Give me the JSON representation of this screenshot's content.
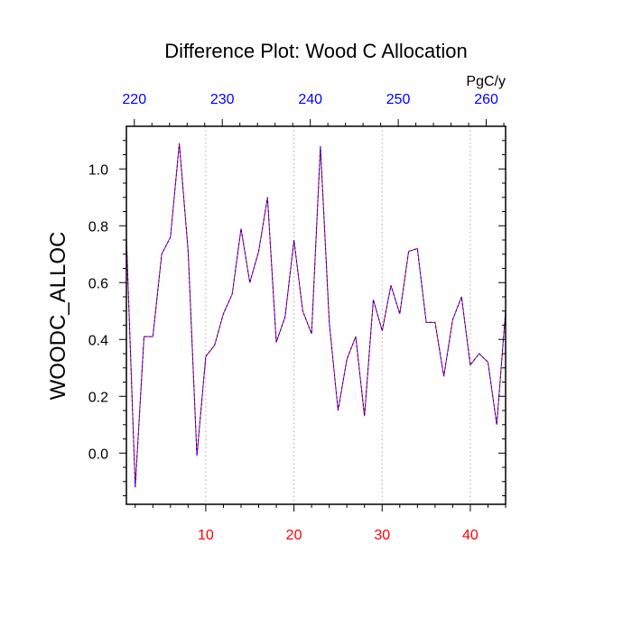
{
  "chart_data": {
    "type": "line",
    "title": "Difference Plot: Wood C Allocation",
    "ylabel": "WOODC_ALLOC",
    "xlabel": "",
    "top_axis_unit": "PgC/y",
    "ylim": [
      -0.18,
      1.15
    ],
    "xlim": [
      1,
      44
    ],
    "y_ticks": [
      0.0,
      0.2,
      0.4,
      0.6,
      0.8,
      1.0
    ],
    "y_tick_labels": [
      "0.0",
      "0.2",
      "0.4",
      "0.6",
      "0.8",
      "1.0"
    ],
    "x_ticks": [
      10,
      20,
      30,
      40
    ],
    "x_tick_labels": [
      "10",
      "20",
      "30",
      "40"
    ],
    "top_ticks": [
      220,
      230,
      240,
      250,
      260
    ],
    "top_tick_labels": [
      "220",
      "230",
      "240",
      "250",
      "260"
    ],
    "top_axis_range": [
      219.1,
      262.2
    ],
    "grid": "vertical dotted at bottom major ticks",
    "colors": {
      "bottom_ticks": "#ff0000",
      "top_ticks": "#0000ff",
      "series_a": "#ff0000",
      "series_b": "#0000ff"
    },
    "x": [
      1,
      2,
      3,
      4,
      5,
      6,
      7,
      8,
      9,
      10,
      11,
      12,
      13,
      14,
      15,
      16,
      17,
      18,
      19,
      20,
      21,
      22,
      23,
      24,
      25,
      26,
      27,
      28,
      29,
      30,
      31,
      32,
      33,
      34,
      35,
      36,
      37,
      38,
      39,
      40,
      41,
      42,
      43,
      44
    ],
    "series": [
      {
        "values": [
          0.76,
          -0.12,
          0.41,
          0.41,
          0.7,
          0.76,
          1.09,
          0.71,
          -0.01,
          0.34,
          0.38,
          0.49,
          0.56,
          0.79,
          0.6,
          0.71,
          0.9,
          0.39,
          0.48,
          0.75,
          0.5,
          0.42,
          1.08,
          0.46,
          0.15,
          0.33,
          0.41,
          0.13,
          0.54,
          0.43,
          0.59,
          0.49,
          0.71,
          0.72,
          0.46,
          0.46,
          0.27,
          0.47,
          0.55,
          0.31,
          0.35,
          0.32,
          0.1,
          0.5
        ]
      },
      {
        "values": [
          0.76,
          -0.12,
          0.41,
          0.41,
          0.7,
          0.76,
          1.09,
          0.71,
          -0.01,
          0.34,
          0.38,
          0.49,
          0.56,
          0.79,
          0.6,
          0.71,
          0.9,
          0.39,
          0.48,
          0.75,
          0.5,
          0.42,
          1.08,
          0.46,
          0.15,
          0.33,
          0.41,
          0.13,
          0.54,
          0.43,
          0.59,
          0.49,
          0.71,
          0.72,
          0.46,
          0.46,
          0.27,
          0.47,
          0.55,
          0.31,
          0.35,
          0.32,
          0.1,
          0.5
        ]
      }
    ]
  }
}
